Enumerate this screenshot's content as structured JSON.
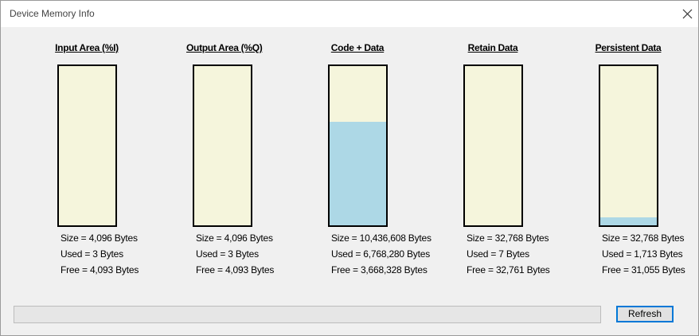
{
  "window": {
    "title": "Device Memory Info",
    "button": "Refresh"
  },
  "panels": [
    {
      "header": "Input Area (%I)",
      "size": {
        "value": 4096,
        "label": "Size = 4,096 Bytes"
      },
      "used": {
        "value": 3,
        "label": "Used = 3 Bytes"
      },
      "free": {
        "value": 4093,
        "label": "Free = 4,093 Bytes"
      }
    },
    {
      "header": "Output Area (%Q)",
      "size": {
        "value": 4096,
        "label": "Size = 4,096 Bytes"
      },
      "used": {
        "value": 3,
        "label": "Used = 3 Bytes"
      },
      "free": {
        "value": 4093,
        "label": "Free = 4,093 Bytes"
      }
    },
    {
      "header": "Code + Data",
      "size": {
        "value": 10436608,
        "label": "Size = 10,436,608 Bytes"
      },
      "used": {
        "value": 6768280,
        "label": "Used = 6,768,280 Bytes"
      },
      "free": {
        "value": 3668328,
        "label": "Free = 3,668,328 Bytes"
      }
    },
    {
      "header": "Retain Data",
      "size": {
        "value": 32768,
        "label": "Size = 32,768 Bytes"
      },
      "used": {
        "value": 7,
        "label": "Used = 7 Bytes"
      },
      "free": {
        "value": 32761,
        "label": "Free = 32,761 Bytes"
      }
    },
    {
      "header": "Persistent Data",
      "size": {
        "value": 32768,
        "label": "Size = 32,768 Bytes"
      },
      "used": {
        "value": 1713,
        "label": "Used = 1,713 Bytes"
      },
      "free": {
        "value": 31055,
        "label": "Free = 31,055 Bytes"
      }
    }
  ]
}
